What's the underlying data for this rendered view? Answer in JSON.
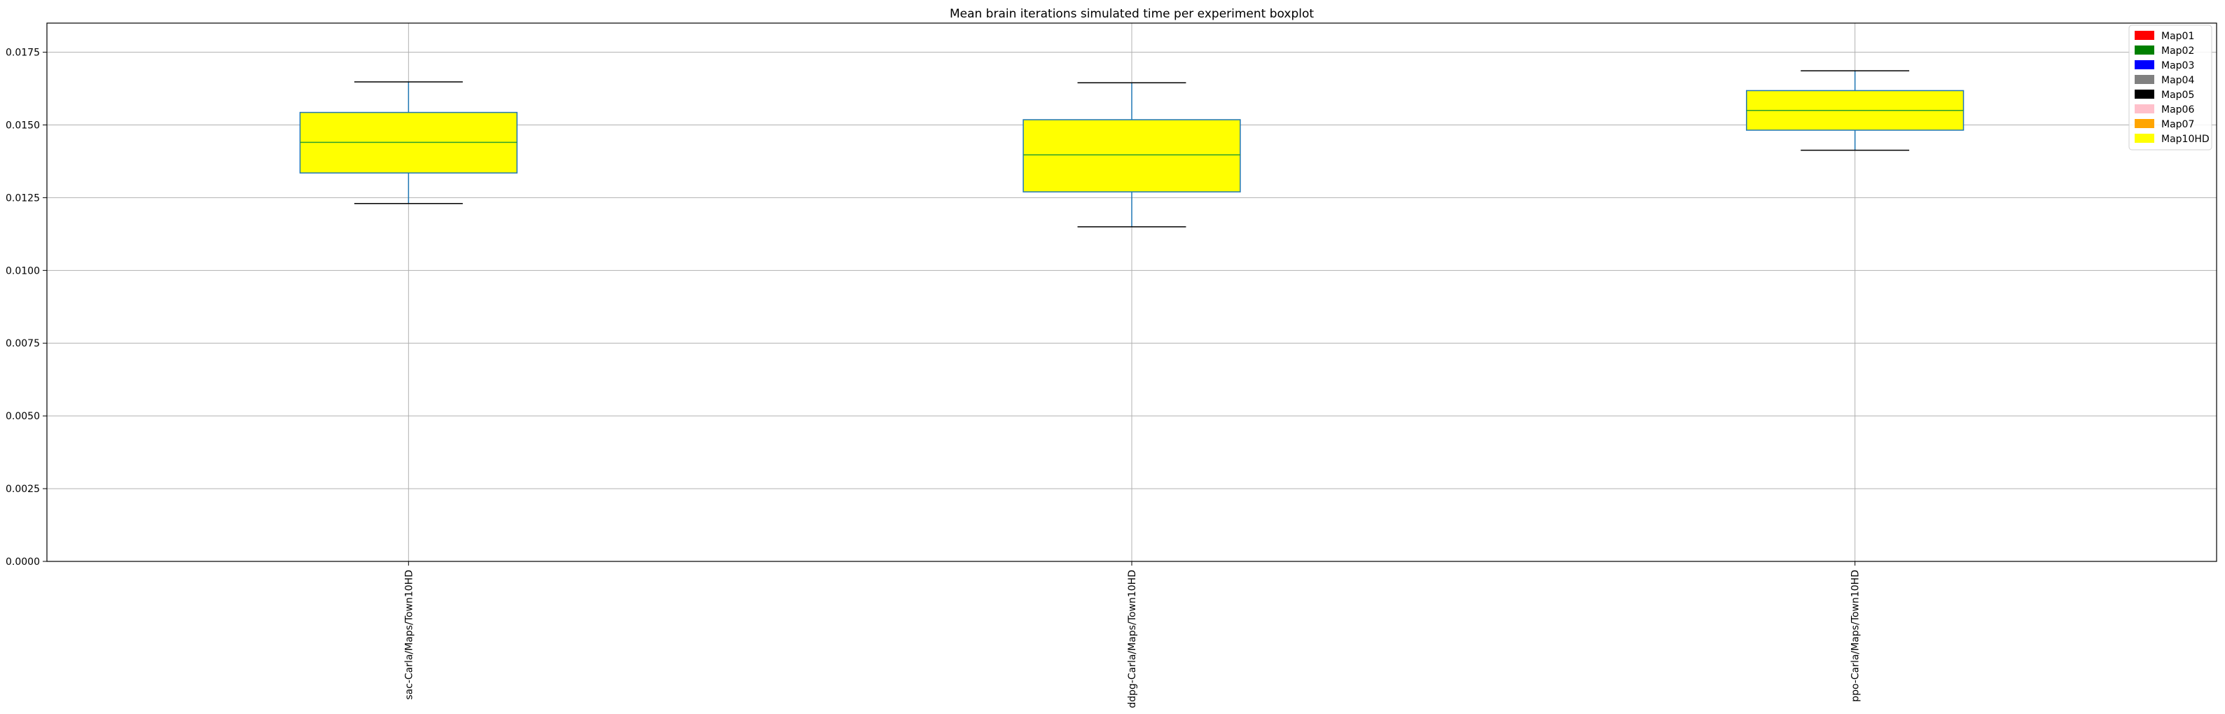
{
  "chart_data": {
    "type": "boxplot",
    "title": "Mean brain iterations simulated time per experiment boxplot",
    "xlabel": "",
    "ylabel": "",
    "ylim": [
      0,
      0.0185
    ],
    "yticks": [
      "0.0000",
      "0.0025",
      "0.0050",
      "0.0075",
      "0.0100",
      "0.0125",
      "0.0150",
      "0.0175"
    ],
    "ytick_values": [
      0,
      0.0025,
      0.005,
      0.0075,
      0.01,
      0.0125,
      0.015,
      0.0175
    ],
    "grid": true,
    "legend_position": "top-right",
    "categories": [
      "sac-Carla/Maps/Town10HD",
      "ddpg-Carla/Maps/Town10HD",
      "ppo-Carla/Maps/Town10HD"
    ],
    "boxes": [
      {
        "label": "sac-Carla/Maps/Town10HD",
        "whisker_low": 0.0123,
        "q1": 0.01335,
        "median": 0.0144,
        "q3": 0.01543,
        "whisker_high": 0.01648,
        "color": "#ffff00"
      },
      {
        "label": "ddpg-Carla/Maps/Town10HD",
        "whisker_low": 0.0115,
        "q1": 0.0127,
        "median": 0.01397,
        "q3": 0.01518,
        "whisker_high": 0.01645,
        "color": "#ffff00"
      },
      {
        "label": "ppo-Carla/Maps/Town10HD",
        "whisker_low": 0.01413,
        "q1": 0.01482,
        "median": 0.0155,
        "q3": 0.01618,
        "whisker_high": 0.01686,
        "color": "#ffff00"
      }
    ],
    "legend": [
      {
        "label": "Map01",
        "color": "#ff0000"
      },
      {
        "label": "Map02",
        "color": "#008000"
      },
      {
        "label": "Map03",
        "color": "#0000ff"
      },
      {
        "label": "Map04",
        "color": "#808080"
      },
      {
        "label": "Map05",
        "color": "#000000"
      },
      {
        "label": "Map06",
        "color": "#ffc0cb"
      },
      {
        "label": "Map07",
        "color": "#ffa500"
      },
      {
        "label": "Map10HD",
        "color": "#ffff00"
      }
    ],
    "colors": {
      "whisker": "#1f77b4",
      "median": "#2ca02c",
      "box_edge": "#1f77b4",
      "cap": "#000000",
      "grid": "#b0b0b0"
    }
  }
}
